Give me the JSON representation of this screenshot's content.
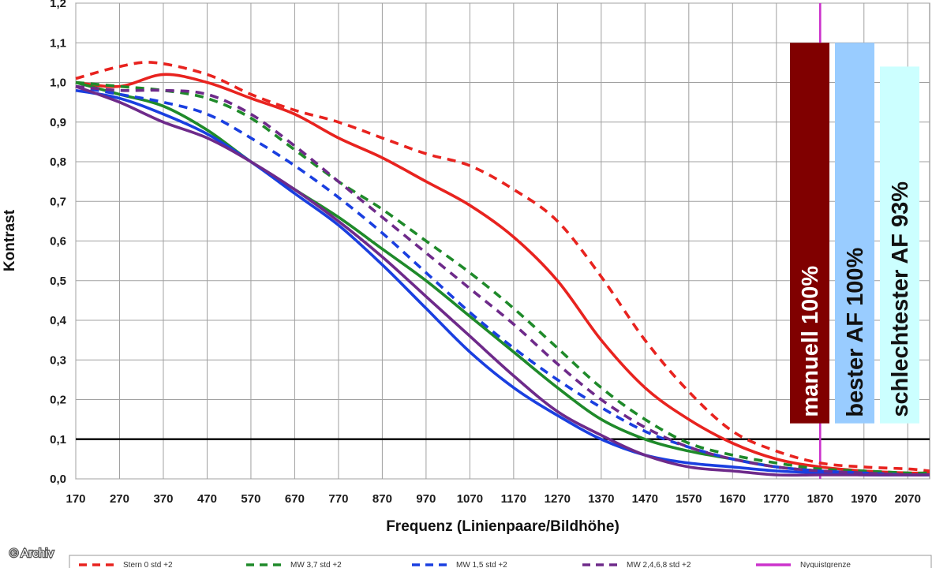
{
  "chart_data": {
    "type": "line",
    "xlabel": "Frequenz (Linienpaare/Bildhöhe)",
    "ylabel": "Kontrast",
    "xlim": [
      170,
      2120
    ],
    "ylim": [
      0,
      1.2
    ],
    "x_ticks": [
      "170",
      "270",
      "370",
      "470",
      "570",
      "670",
      "770",
      "870",
      "970",
      "1070",
      "1170",
      "1270",
      "1370",
      "1470",
      "1570",
      "1670",
      "1770",
      "1870",
      "1970",
      "2070"
    ],
    "y_ticks": [
      "0,0",
      "0,1",
      "0,2",
      "0,3",
      "0,4",
      "0,5",
      "0,6",
      "0,7",
      "0,8",
      "0,9",
      "1,0",
      "1,1",
      "1,2"
    ],
    "grid": true,
    "legend_position": "bottom",
    "reference_lines": [
      {
        "axis": "y",
        "value": 0.1,
        "color": "#000000"
      },
      {
        "axis": "x",
        "value": 1870,
        "color": "#cc33cc",
        "name": "Nyquistgrenze"
      }
    ],
    "series": [
      {
        "name": "Stern 0 std +2",
        "color": "#e8231f",
        "style": "dashed",
        "x": [
          170,
          270,
          350,
          470,
          570,
          670,
          770,
          870,
          970,
          1070,
          1170,
          1270,
          1370,
          1470,
          1570,
          1670,
          1770,
          1870,
          1970,
          2070,
          2120
        ],
        "y": [
          1.01,
          1.04,
          1.05,
          1.02,
          0.97,
          0.93,
          0.9,
          0.86,
          0.82,
          0.79,
          0.73,
          0.65,
          0.51,
          0.35,
          0.22,
          0.12,
          0.07,
          0.04,
          0.03,
          0.025,
          0.02
        ]
      },
      {
        "name": "",
        "color": "#e8231f",
        "style": "solid",
        "x": [
          170,
          270,
          370,
          470,
          570,
          670,
          770,
          870,
          970,
          1070,
          1170,
          1270,
          1370,
          1470,
          1570,
          1670,
          1770,
          1870,
          1970,
          2070,
          2120
        ],
        "y": [
          1.0,
          0.99,
          1.02,
          1.0,
          0.96,
          0.92,
          0.86,
          0.81,
          0.75,
          0.69,
          0.61,
          0.5,
          0.35,
          0.23,
          0.15,
          0.09,
          0.05,
          0.03,
          0.02,
          0.015,
          0.015
        ]
      },
      {
        "name": "MW 3,7 std +2",
        "color": "#1f8a2a",
        "style": "dashed",
        "x": [
          170,
          270,
          370,
          470,
          570,
          670,
          770,
          870,
          970,
          1070,
          1170,
          1270,
          1370,
          1470,
          1570,
          1670,
          1770,
          1870,
          1970,
          2070,
          2120
        ],
        "y": [
          1.0,
          0.99,
          0.98,
          0.96,
          0.91,
          0.83,
          0.75,
          0.68,
          0.6,
          0.52,
          0.43,
          0.33,
          0.23,
          0.15,
          0.09,
          0.06,
          0.04,
          0.025,
          0.02,
          0.015,
          0.015
        ]
      },
      {
        "name": "",
        "color": "#1f8a2a",
        "style": "solid",
        "x": [
          170,
          270,
          370,
          470,
          570,
          670,
          770,
          870,
          970,
          1070,
          1170,
          1270,
          1370,
          1470,
          1570,
          1670,
          1770,
          1870,
          1970,
          2070,
          2120
        ],
        "y": [
          1.0,
          0.97,
          0.94,
          0.88,
          0.8,
          0.73,
          0.66,
          0.58,
          0.5,
          0.41,
          0.32,
          0.23,
          0.15,
          0.1,
          0.07,
          0.05,
          0.03,
          0.02,
          0.015,
          0.01,
          0.01
        ]
      },
      {
        "name": "MW 1,5 std +2",
        "color": "#1a3fe0",
        "style": "dashed",
        "x": [
          170,
          270,
          370,
          470,
          570,
          670,
          770,
          870,
          970,
          1070,
          1170,
          1270,
          1370,
          1470,
          1570,
          1670,
          1770,
          1870,
          1970,
          2070,
          2120
        ],
        "y": [
          0.99,
          0.97,
          0.95,
          0.92,
          0.86,
          0.79,
          0.71,
          0.62,
          0.52,
          0.42,
          0.33,
          0.25,
          0.18,
          0.12,
          0.08,
          0.05,
          0.03,
          0.02,
          0.015,
          0.01,
          0.01
        ]
      },
      {
        "name": "",
        "color": "#1a3fe0",
        "style": "solid",
        "x": [
          170,
          270,
          370,
          470,
          570,
          670,
          770,
          870,
          970,
          1070,
          1170,
          1270,
          1370,
          1470,
          1570,
          1670,
          1770,
          1870,
          1970,
          2070,
          2120
        ],
        "y": [
          0.98,
          0.96,
          0.92,
          0.87,
          0.8,
          0.72,
          0.64,
          0.54,
          0.43,
          0.32,
          0.23,
          0.16,
          0.1,
          0.06,
          0.04,
          0.03,
          0.02,
          0.015,
          0.01,
          0.01,
          0.01
        ]
      },
      {
        "name": "MW 2,4,6,8 std +2",
        "color": "#6e2a8a",
        "style": "dashed",
        "x": [
          170,
          270,
          370,
          470,
          570,
          670,
          770,
          870,
          970,
          1070,
          1170,
          1270,
          1370,
          1470,
          1570,
          1670,
          1770,
          1870,
          1970,
          2070,
          2120
        ],
        "y": [
          0.99,
          0.98,
          0.98,
          0.97,
          0.92,
          0.84,
          0.75,
          0.66,
          0.57,
          0.48,
          0.39,
          0.29,
          0.2,
          0.13,
          0.08,
          0.05,
          0.03,
          0.02,
          0.015,
          0.01,
          0.01
        ]
      },
      {
        "name": "",
        "color": "#6e2a8a",
        "style": "solid",
        "x": [
          170,
          270,
          370,
          470,
          570,
          670,
          770,
          870,
          970,
          1070,
          1170,
          1270,
          1370,
          1470,
          1570,
          1670,
          1770,
          1870,
          1970,
          2070,
          2120
        ],
        "y": [
          0.99,
          0.95,
          0.9,
          0.86,
          0.8,
          0.73,
          0.65,
          0.56,
          0.46,
          0.36,
          0.26,
          0.17,
          0.11,
          0.06,
          0.03,
          0.02,
          0.01,
          0.01,
          0.01,
          0.01,
          0.01
        ]
      }
    ],
    "bars": [
      {
        "label": "manuell 100%",
        "value": 1.1,
        "color": "#800000",
        "text_color": "#ffffff"
      },
      {
        "label": "bester AF 100%",
        "value": 1.1,
        "color": "#99ccff",
        "text_color": "#111111"
      },
      {
        "label": "schlechtester AF 93%",
        "value": 1.04,
        "color": "#ccffff",
        "text_color": "#111111"
      }
    ],
    "legend": [
      {
        "label": "Stern 0 std +2",
        "color": "#e8231f",
        "style": "dashed"
      },
      {
        "label": "MW 3,7 std +2",
        "color": "#1f8a2a",
        "style": "dashed"
      },
      {
        "label": "MW 1,5 std +2",
        "color": "#1a3fe0",
        "style": "dashed"
      },
      {
        "label": "MW 2,4,6,8 std +2",
        "color": "#6e2a8a",
        "style": "dashed"
      },
      {
        "label": "Nyquistgrenze",
        "color": "#cc33cc",
        "style": "solid"
      }
    ]
  },
  "credit": "© Archiv"
}
